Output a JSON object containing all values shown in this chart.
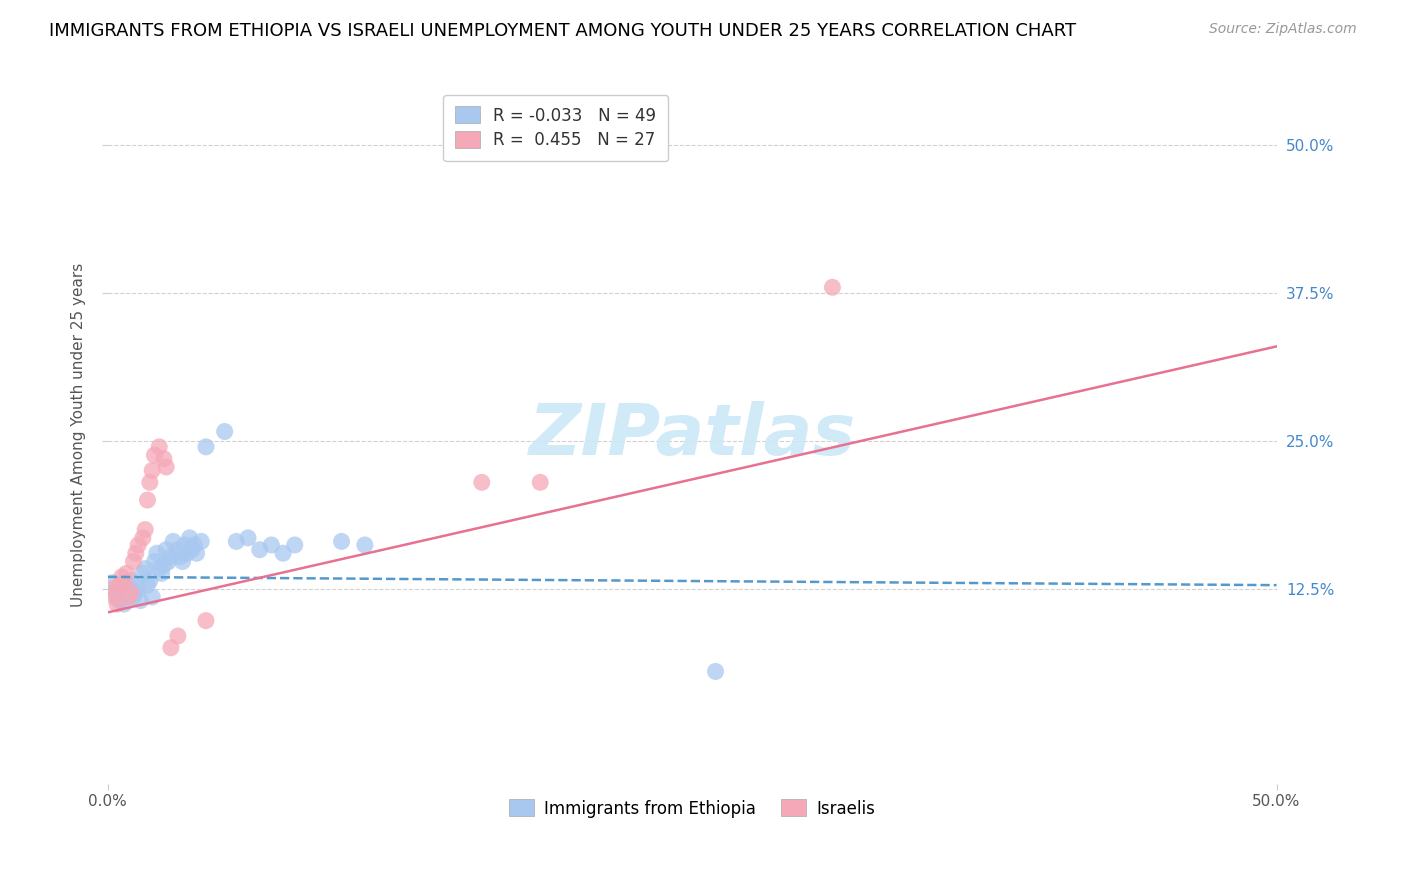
{
  "title": "IMMIGRANTS FROM ETHIOPIA VS ISRAELI UNEMPLOYMENT AMONG YOUTH UNDER 25 YEARS CORRELATION CHART",
  "source": "Source: ZipAtlas.com",
  "ylabel": "Unemployment Among Youth under 25 years",
  "xmin": 0.0,
  "xmax": 0.5,
  "ymin": -0.04,
  "ymax": 0.55,
  "xtick_positions": [
    0.0,
    0.5
  ],
  "xticklabels": [
    "0.0%",
    "50.0%"
  ],
  "ytick_positions": [
    0.125,
    0.25,
    0.375,
    0.5
  ],
  "ytick_labels": [
    "12.5%",
    "25.0%",
    "37.5%",
    "50.0%"
  ],
  "legend_labels": [
    "Immigrants from Ethiopia",
    "Israelis"
  ],
  "legend_r1": "-0.033",
  "legend_n1": "49",
  "legend_r2": "0.455",
  "legend_n2": "27",
  "blue_color": "#a8c8f0",
  "pink_color": "#f5a8b8",
  "line_blue_color": "#5599cc",
  "line_pink_color": "#e87090",
  "watermark_color": "#cce8f8",
  "title_fontsize": 13,
  "source_fontsize": 10,
  "blue_line_y0": 0.135,
  "blue_line_y1": 0.128,
  "pink_line_y0": 0.105,
  "pink_line_y1": 0.33,
  "blue_scatter": [
    [
      0.002,
      0.13
    ],
    [
      0.003,
      0.122
    ],
    [
      0.004,
      0.118
    ],
    [
      0.005,
      0.115
    ],
    [
      0.005,
      0.125
    ],
    [
      0.006,
      0.12
    ],
    [
      0.007,
      0.112
    ],
    [
      0.008,
      0.118
    ],
    [
      0.009,
      0.128
    ],
    [
      0.01,
      0.132
    ],
    [
      0.011,
      0.118
    ],
    [
      0.012,
      0.122
    ],
    [
      0.013,
      0.125
    ],
    [
      0.014,
      0.115
    ],
    [
      0.015,
      0.138
    ],
    [
      0.016,
      0.142
    ],
    [
      0.017,
      0.128
    ],
    [
      0.018,
      0.132
    ],
    [
      0.019,
      0.118
    ],
    [
      0.02,
      0.148
    ],
    [
      0.021,
      0.155
    ],
    [
      0.022,
      0.142
    ],
    [
      0.023,
      0.138
    ],
    [
      0.024,
      0.145
    ],
    [
      0.025,
      0.158
    ],
    [
      0.026,
      0.148
    ],
    [
      0.027,
      0.152
    ],
    [
      0.028,
      0.165
    ],
    [
      0.03,
      0.158
    ],
    [
      0.031,
      0.152
    ],
    [
      0.032,
      0.148
    ],
    [
      0.033,
      0.162
    ],
    [
      0.034,
      0.155
    ],
    [
      0.035,
      0.168
    ],
    [
      0.036,
      0.158
    ],
    [
      0.037,
      0.162
    ],
    [
      0.038,
      0.155
    ],
    [
      0.04,
      0.165
    ],
    [
      0.042,
      0.245
    ],
    [
      0.05,
      0.258
    ],
    [
      0.055,
      0.165
    ],
    [
      0.06,
      0.168
    ],
    [
      0.065,
      0.158
    ],
    [
      0.07,
      0.162
    ],
    [
      0.075,
      0.155
    ],
    [
      0.08,
      0.162
    ],
    [
      0.1,
      0.165
    ],
    [
      0.11,
      0.162
    ],
    [
      0.26,
      0.055
    ]
  ],
  "pink_scatter": [
    [
      0.002,
      0.125
    ],
    [
      0.003,
      0.118
    ],
    [
      0.004,
      0.112
    ],
    [
      0.005,
      0.128
    ],
    [
      0.006,
      0.135
    ],
    [
      0.007,
      0.13
    ],
    [
      0.008,
      0.138
    ],
    [
      0.009,
      0.118
    ],
    [
      0.01,
      0.122
    ],
    [
      0.011,
      0.148
    ],
    [
      0.012,
      0.155
    ],
    [
      0.013,
      0.162
    ],
    [
      0.015,
      0.168
    ],
    [
      0.016,
      0.175
    ],
    [
      0.017,
      0.2
    ],
    [
      0.018,
      0.215
    ],
    [
      0.019,
      0.225
    ],
    [
      0.02,
      0.238
    ],
    [
      0.022,
      0.245
    ],
    [
      0.024,
      0.235
    ],
    [
      0.025,
      0.228
    ],
    [
      0.027,
      0.075
    ],
    [
      0.03,
      0.085
    ],
    [
      0.042,
      0.098
    ],
    [
      0.16,
      0.215
    ],
    [
      0.185,
      0.215
    ],
    [
      0.31,
      0.38
    ]
  ]
}
